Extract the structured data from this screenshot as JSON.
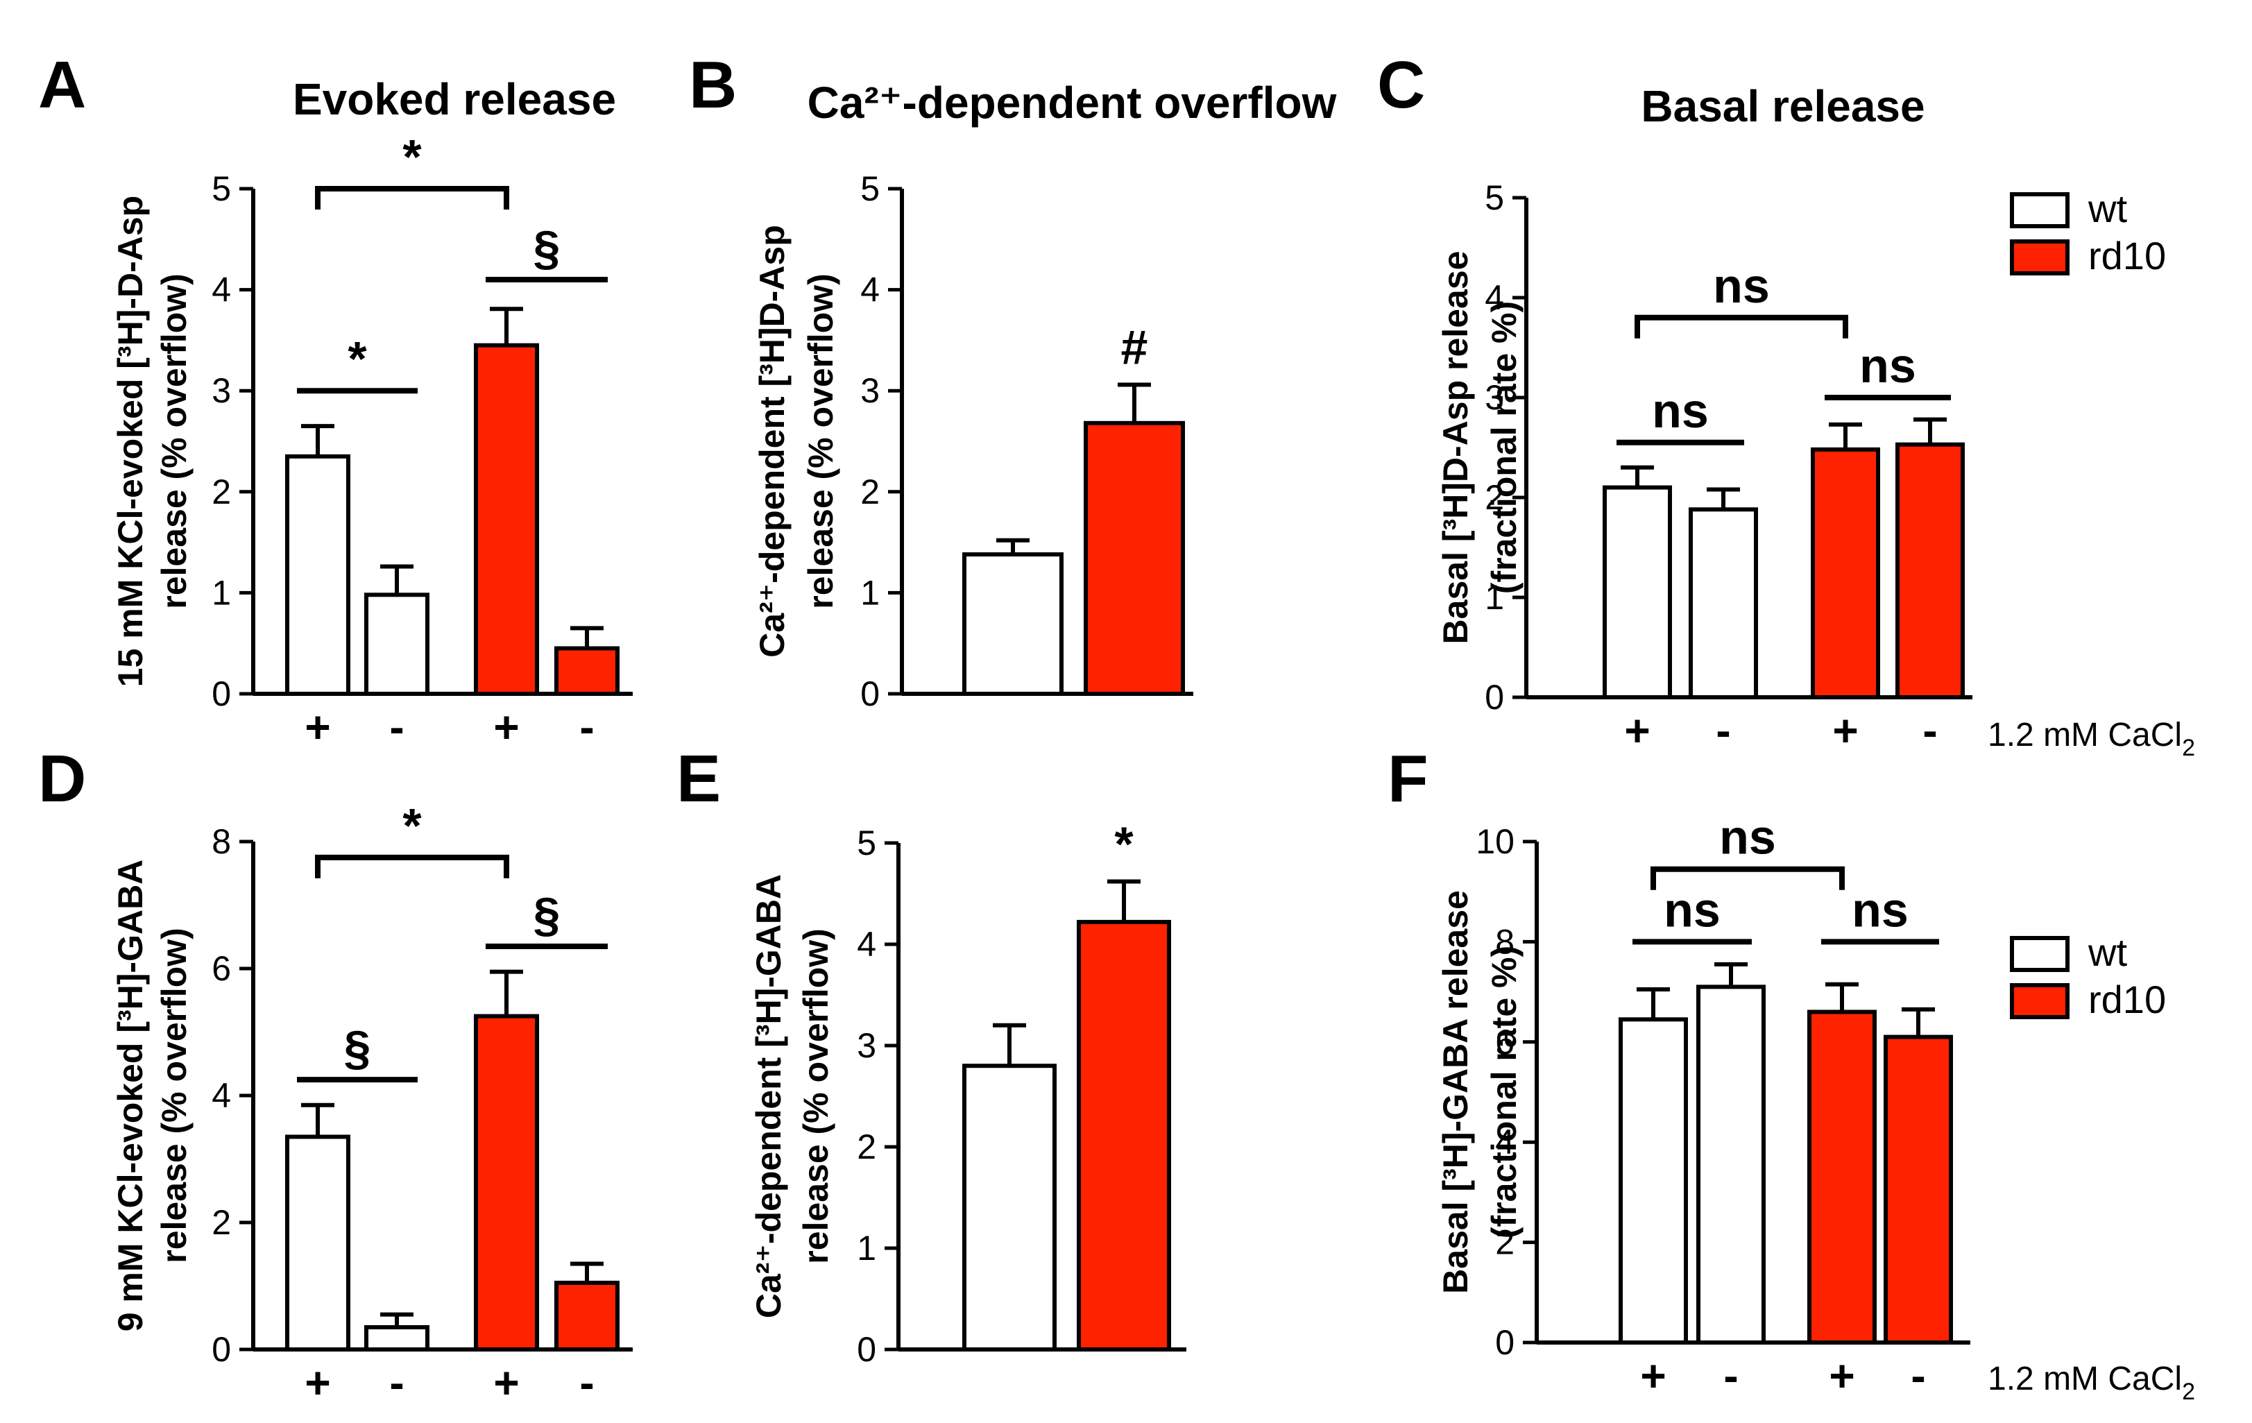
{
  "colors": {
    "wt": "#ffffff",
    "rd10": "#ff2200",
    "stroke": "#000000"
  },
  "legend": {
    "wt": "wt",
    "rd10": "rd10"
  },
  "condition_label": "1.2 mM CaCl",
  "condition_sub": "2",
  "chart_data": [
    {
      "id": "A",
      "type": "bar",
      "title": "Evoked release",
      "ylabel": [
        "15 mM KCl-evoked [³H]-D-Asp",
        "release (% overflow)"
      ],
      "ylim": [
        0,
        5
      ],
      "yticks": [
        0,
        1,
        2,
        3,
        4,
        5
      ],
      "categories": [
        "+",
        "-",
        "+",
        "-"
      ],
      "groups": [
        "wt",
        "wt",
        "rd10",
        "rd10"
      ],
      "values": [
        2.35,
        0.98,
        3.45,
        0.45
      ],
      "errors": [
        0.3,
        0.28,
        0.36,
        0.2
      ],
      "significance": [
        {
          "label": "*",
          "from": 0,
          "to": 2,
          "y": 5.0,
          "style": "bracket"
        },
        {
          "label": "§",
          "from": 2,
          "to": 3,
          "y": 4.1,
          "style": "line"
        },
        {
          "label": "*",
          "from": 0,
          "to": 1,
          "y": 3.0,
          "style": "line"
        }
      ]
    },
    {
      "id": "B",
      "type": "bar",
      "title": "Ca²⁺-dependent overflow",
      "ylabel": [
        "Ca²⁺-dependent [³H]D-Asp",
        "release (% overflow)"
      ],
      "ylim": [
        0,
        5
      ],
      "yticks": [
        0,
        1,
        2,
        3,
        4,
        5
      ],
      "categories": [
        "",
        ""
      ],
      "groups": [
        "wt",
        "rd10"
      ],
      "values": [
        1.38,
        2.68
      ],
      "errors": [
        0.14,
        0.38
      ],
      "significance": [
        {
          "label": "#",
          "bar": 1,
          "style": "mark"
        }
      ]
    },
    {
      "id": "C",
      "type": "bar",
      "title": "Basal release",
      "ylabel": [
        "Basal  [³H]D-Asp release",
        "(fractional rate %)"
      ],
      "ylim": [
        0,
        5
      ],
      "yticks": [
        0,
        1,
        2,
        3,
        4,
        5
      ],
      "categories": [
        "+",
        "-",
        "+",
        "-"
      ],
      "groups": [
        "wt",
        "wt",
        "rd10",
        "rd10"
      ],
      "values": [
        2.1,
        1.88,
        2.48,
        2.53
      ],
      "errors": [
        0.2,
        0.2,
        0.25,
        0.25
      ],
      "significance": [
        {
          "label": "ns",
          "from": 0,
          "to": 2,
          "y": 3.8,
          "style": "bracket"
        },
        {
          "label": "ns",
          "from": 0,
          "to": 1,
          "y": 2.55,
          "style": "line"
        },
        {
          "label": "ns",
          "from": 2,
          "to": 3,
          "y": 3.0,
          "style": "line"
        }
      ]
    },
    {
      "id": "D",
      "type": "bar",
      "title": "",
      "ylabel": [
        "9 mM KCl-evoked [³H]-GABA",
        "release (% overflow)"
      ],
      "ylim": [
        0,
        8
      ],
      "yticks": [
        0,
        2,
        4,
        6,
        8
      ],
      "categories": [
        "+",
        "-",
        "+",
        "-"
      ],
      "groups": [
        "wt",
        "wt",
        "rd10",
        "rd10"
      ],
      "values": [
        3.35,
        0.35,
        5.25,
        1.05
      ],
      "errors": [
        0.5,
        0.2,
        0.7,
        0.3
      ],
      "significance": [
        {
          "label": "*",
          "from": 0,
          "to": 2,
          "y": 7.75,
          "style": "bracket"
        },
        {
          "label": "§",
          "from": 2,
          "to": 3,
          "y": 6.35,
          "style": "line"
        },
        {
          "label": "§",
          "from": 0,
          "to": 1,
          "y": 4.25,
          "style": "line"
        }
      ]
    },
    {
      "id": "E",
      "type": "bar",
      "title": "",
      "ylabel": [
        "Ca²⁺-dependent [³H]-GABA",
        "release (% overflow)"
      ],
      "ylim": [
        0,
        5
      ],
      "yticks": [
        0,
        1,
        2,
        3,
        4,
        5
      ],
      "categories": [
        "",
        ""
      ],
      "groups": [
        "wt",
        "rd10"
      ],
      "values": [
        2.8,
        4.22
      ],
      "errors": [
        0.4,
        0.4
      ],
      "significance": [
        {
          "label": "*",
          "bar": 1,
          "style": "mark"
        }
      ]
    },
    {
      "id": "F",
      "type": "bar",
      "title": "",
      "ylabel": [
        "Basal  [³H]-GABA release",
        "(fractional rate %)"
      ],
      "ylim": [
        0,
        10
      ],
      "yticks": [
        0,
        2,
        4,
        6,
        8,
        10
      ],
      "categories": [
        "+",
        "-",
        "+",
        "-"
      ],
      "groups": [
        "wt",
        "wt",
        "rd10",
        "rd10"
      ],
      "values": [
        6.45,
        7.1,
        6.6,
        6.1
      ],
      "errors": [
        0.6,
        0.45,
        0.55,
        0.55
      ],
      "significance": [
        {
          "label": "ns",
          "from": 0,
          "to": 2,
          "y": 9.45,
          "style": "bracket"
        },
        {
          "label": "ns",
          "from": 0,
          "to": 1,
          "y": 8.0,
          "style": "line"
        },
        {
          "label": "ns",
          "from": 2,
          "to": 3,
          "y": 8.0,
          "style": "line"
        }
      ]
    }
  ]
}
